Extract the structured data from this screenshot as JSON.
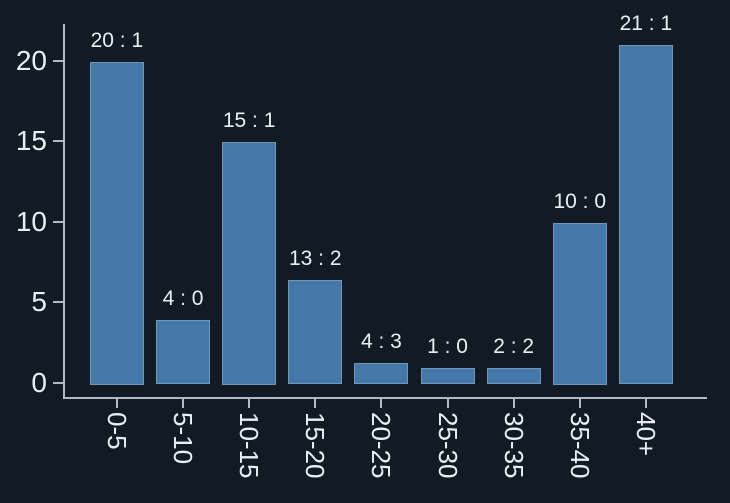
{
  "chart_data": {
    "type": "bar",
    "categories": [
      "0-5",
      "5-10",
      "10-15",
      "15-20",
      "20-25",
      "25-30",
      "30-35",
      "35-40",
      "40+"
    ],
    "bar_labels": [
      "20 : 1",
      "4 : 0",
      "15 : 1",
      "13 : 2",
      "4 : 3",
      "1 : 0",
      "2 : 2",
      "10 : 0",
      "21 : 1"
    ],
    "values": [
      20,
      4,
      15,
      6.5,
      1.33,
      1,
      1,
      10,
      21
    ],
    "y_ticks": [
      0,
      5,
      10,
      15,
      20
    ],
    "ylim": [
      0,
      22.3
    ],
    "grid": false,
    "legend_position": "none",
    "colors": {
      "background": "#121a23",
      "bar_fill": "#4478a8",
      "bar_border": "#7098bb",
      "axis": "#b2bac2",
      "text": "#e9eef3"
    }
  }
}
